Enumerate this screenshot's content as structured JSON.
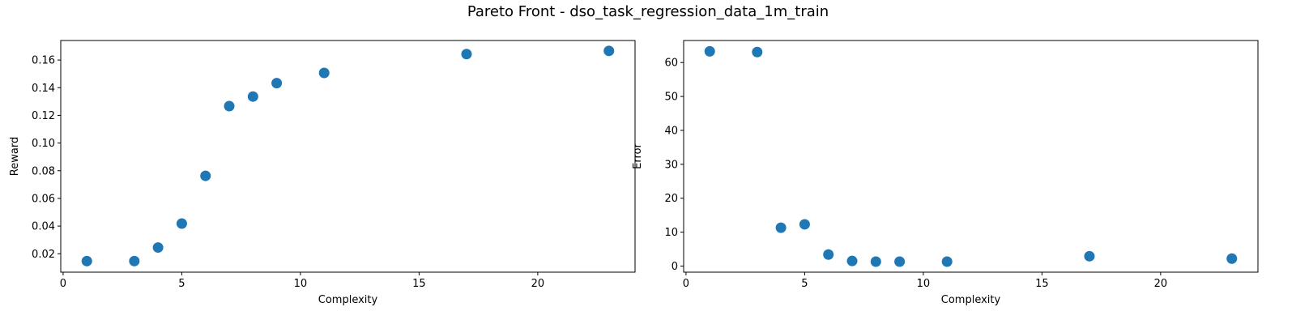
{
  "figure": {
    "title": "Pareto Front - dso_task_regression_data_1m_train"
  },
  "chart_data": [
    {
      "type": "scatter",
      "title": "",
      "xlabel": "Complexity",
      "ylabel": "Reward",
      "xlim": [
        -0.1,
        24.1
      ],
      "ylim": [
        0.0067,
        0.1741
      ],
      "xticks": [
        0,
        5,
        10,
        15,
        20
      ],
      "yticks": [
        0.02,
        0.04,
        0.06,
        0.08,
        0.1,
        0.12,
        0.14,
        0.16
      ],
      "ytick_labels": [
        "0.02",
        "0.04",
        "0.06",
        "0.08",
        "0.10",
        "0.12",
        "0.14",
        "0.16"
      ],
      "grid": false,
      "marker_color": "#1f77b4",
      "series": [
        {
          "x": [
            1,
            3,
            4,
            5,
            6,
            7,
            8,
            9,
            11,
            17,
            23
          ],
          "y": [
            0.0147,
            0.0147,
            0.0245,
            0.0418,
            0.0763,
            0.1267,
            0.1336,
            0.1433,
            0.1507,
            0.1643,
            0.1666
          ]
        }
      ]
    },
    {
      "type": "scatter",
      "title": "",
      "xlabel": "Complexity",
      "ylabel": "Error",
      "xlim": [
        -0.1,
        24.1
      ],
      "ylim": [
        -1.8,
        66.5
      ],
      "xticks": [
        0,
        5,
        10,
        15,
        20
      ],
      "yticks": [
        0,
        10,
        20,
        30,
        40,
        50,
        60
      ],
      "ytick_labels": [
        "0",
        "10",
        "20",
        "30",
        "40",
        "50",
        "60"
      ],
      "grid": false,
      "marker_color": "#1f77b4",
      "series": [
        {
          "x": [
            1,
            3,
            4,
            5,
            6,
            7,
            8,
            9,
            11,
            17,
            23
          ],
          "y": [
            63.3,
            63.1,
            11.3,
            12.3,
            3.4,
            1.5,
            1.3,
            1.3,
            1.3,
            2.9,
            2.2
          ]
        }
      ]
    }
  ]
}
